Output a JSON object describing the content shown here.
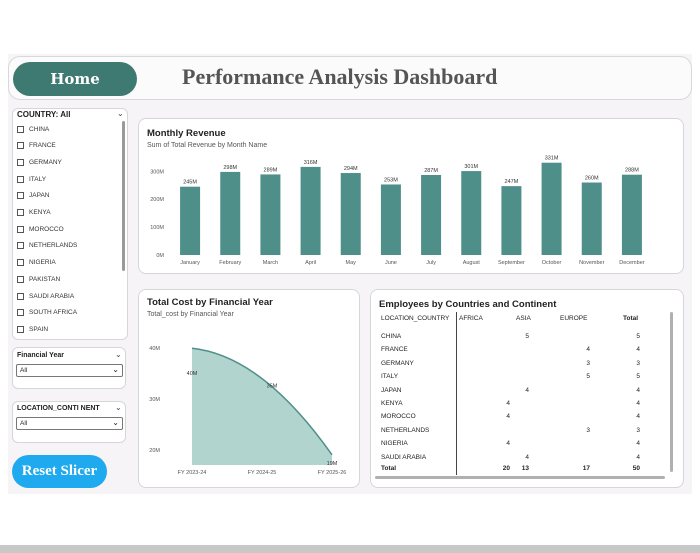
{
  "header": {
    "home_label": "Home",
    "title": "Performance Analysis Dashboard"
  },
  "country_slicer": {
    "label": "COUNTRY: All",
    "items": [
      "CHINA",
      "FRANCE",
      "GERMANY",
      "ITALY",
      "JAPAN",
      "KENYA",
      "MOROCCO",
      "NETHERLANDS",
      "NIGERIA",
      "PAKISTAN",
      "SAUDI ARABIA",
      "SOUTH AFRICA",
      "SPAIN"
    ]
  },
  "fy_slicer": {
    "label": "Financial Year",
    "value": "All"
  },
  "loc_slicer": {
    "label": "LOCATION_CONTI NENT",
    "value": "All"
  },
  "reset_label": "Reset Slicer",
  "revenue_card": {
    "title": "Monthly Revenue",
    "subtitle": "Sum of Total Revenue by Month Name"
  },
  "cost_card": {
    "title": "Total Cost by Financial Year",
    "subtitle": "Total_cost by Financial Year"
  },
  "emp_card": {
    "title": "Employees by Countries and Continent",
    "columns": [
      "LOCATION_COUNTRY",
      "AFRICA",
      "ASIA",
      "EUROPE",
      "Total"
    ],
    "rows": [
      [
        "CHINA",
        "",
        "5",
        "",
        "5"
      ],
      [
        "FRANCE",
        "",
        "",
        "4",
        "4"
      ],
      [
        "GERMANY",
        "",
        "",
        "3",
        "3"
      ],
      [
        "ITALY",
        "",
        "",
        "5",
        "5"
      ],
      [
        "JAPAN",
        "",
        "4",
        "",
        "4"
      ],
      [
        "KENYA",
        "4",
        "",
        "",
        "4"
      ],
      [
        "MOROCCO",
        "4",
        "",
        "",
        "4"
      ],
      [
        "NETHERLANDS",
        "",
        "",
        "3",
        "3"
      ],
      [
        "NIGERIA",
        "4",
        "",
        "",
        "4"
      ],
      [
        "SAUDI ARABIA",
        "",
        "4",
        "",
        "4"
      ]
    ],
    "total_row": [
      "Total",
      "20",
      "13",
      "17",
      "50"
    ]
  },
  "chart_data": [
    {
      "type": "bar",
      "title": "Monthly Revenue",
      "subtitle": "Sum of Total Revenue by Month Name",
      "categories": [
        "January",
        "February",
        "March",
        "April",
        "May",
        "June",
        "July",
        "August",
        "September",
        "October",
        "November",
        "December"
      ],
      "values": [
        245,
        298,
        289,
        316,
        294,
        253,
        287,
        301,
        247,
        331,
        260,
        288
      ],
      "value_labels": [
        "245M",
        "298M",
        "289M",
        "316M",
        "294M",
        "253M",
        "287M",
        "301M",
        "247M",
        "331M",
        "260M",
        "288M"
      ],
      "yticks": [
        "0M",
        "100M",
        "200M",
        "300M"
      ],
      "ylim": [
        0,
        330
      ],
      "color": "#4f8f8a"
    },
    {
      "type": "area",
      "title": "Total Cost by Financial Year",
      "subtitle": "Total_cost by Financial Year",
      "categories": [
        "FY 2023-24",
        "FY 2024-25",
        "FY 2025-26"
      ],
      "values": [
        40,
        35,
        19
      ],
      "value_labels": [
        "40M",
        "35M",
        "19M"
      ],
      "yticks": [
        "20M",
        "30M",
        "40M"
      ],
      "ylim": [
        17,
        43
      ],
      "color": "#4f8f8a"
    }
  ]
}
